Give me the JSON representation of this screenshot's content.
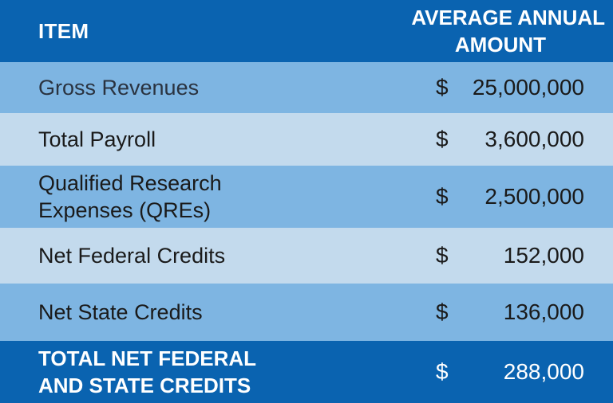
{
  "header": {
    "item_label": "ITEM",
    "amount_label_line1": "AVERAGE ANNUAL",
    "amount_label_line2": "AMOUNT"
  },
  "rows": [
    {
      "item": "Gross Revenues",
      "currency": "$",
      "amount": "25,000,000"
    },
    {
      "item": "Total Payroll",
      "currency": "$",
      "amount": "3,600,000"
    },
    {
      "item_line1": "Qualified Research",
      "item_line2": "Expenses (QREs)",
      "currency": "$",
      "amount": "2,500,000"
    },
    {
      "item": "Net Federal Credits",
      "currency": "$",
      "amount": "152,000"
    },
    {
      "item": "Net State Credits",
      "currency": "$",
      "amount": "136,000"
    }
  ],
  "total": {
    "item_line1": "TOTAL NET FEDERAL",
    "item_line2": "AND STATE CREDITS",
    "currency": "$",
    "amount": "288,000"
  },
  "colors": {
    "header_bg": "#0a63b0",
    "row_dark": "#7eb5e2",
    "row_light": "#c3daed"
  }
}
